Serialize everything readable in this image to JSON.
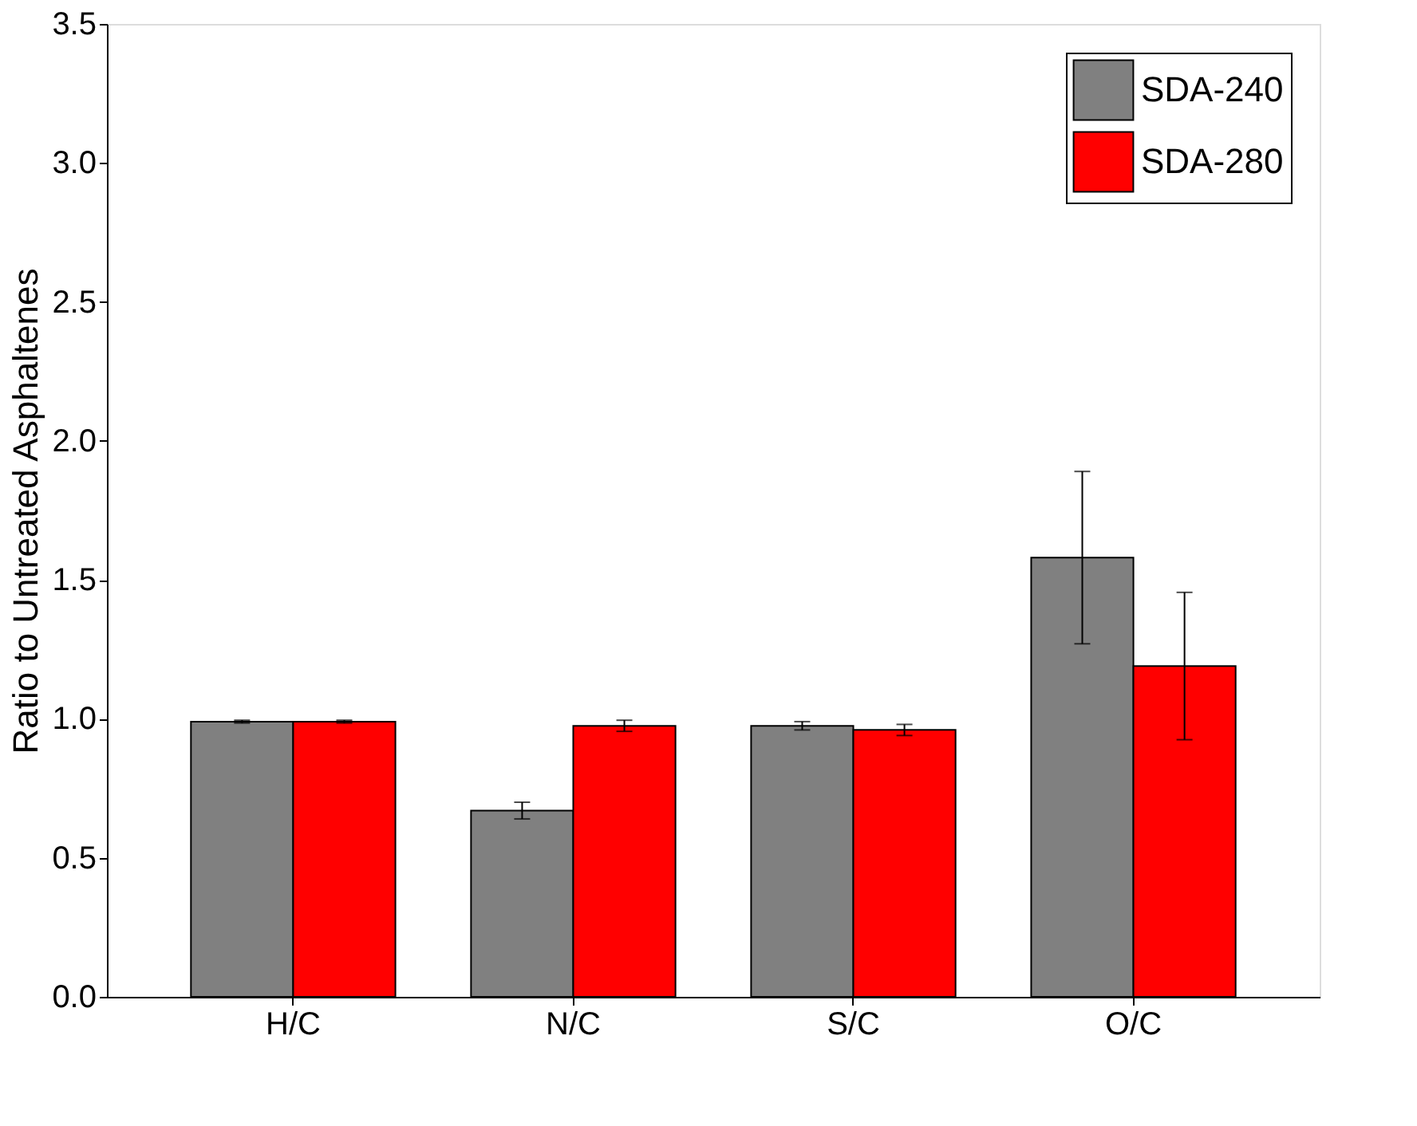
{
  "chart_data": {
    "type": "bar",
    "ylabel": "Ratio to Untreated Asphaltenes",
    "categories": [
      "H/C",
      "N/C",
      "S/C",
      "O/C"
    ],
    "series": [
      {
        "name": "SDA-240",
        "color": "#808080",
        "values": [
          0.99,
          0.67,
          0.975,
          1.58
        ],
        "errors": [
          0.005,
          0.03,
          0.015,
          0.31
        ]
      },
      {
        "name": "SDA-280",
        "color": "#ff0000",
        "values": [
          0.99,
          0.975,
          0.96,
          1.19
        ],
        "errors": [
          0.005,
          0.02,
          0.02,
          0.265
        ]
      }
    ],
    "ylim": [
      0,
      3.5
    ],
    "yticks": [
      {
        "value": 0,
        "label": "0.0"
      },
      0.5,
      {
        "value": 1,
        "label": "1.0"
      },
      1.5,
      {
        "value": 2,
        "label": "2.0"
      },
      2.5,
      {
        "value": 3,
        "label": "3.0"
      },
      3.5
    ],
    "grid": false,
    "legend": "top right"
  }
}
